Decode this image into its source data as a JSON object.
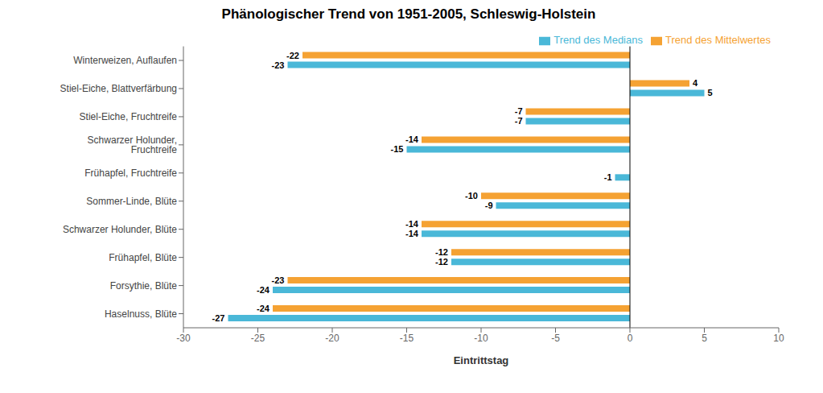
{
  "chart_data": {
    "type": "bar",
    "orientation": "horizontal",
    "title": "Phänologischer Trend von 1951-2005, Schleswig-Holstein",
    "xlabel": "Eintrittstag",
    "categories": [
      "Winterweizen, Auflaufen",
      "Stiel-Eiche, Blattverfärbung",
      "Stiel-Eiche, Fruchtreife",
      "Schwarzer Holunder, Fruchtreife",
      "Frühapfel, Fruchtreife",
      "Sommer-Linde, Blüte",
      "Schwarzer Holunder, Blüte",
      "Frühapfel, Blüte",
      "Forsythie, Blüte",
      "Haselnuss, Blüte"
    ],
    "series": [
      {
        "name": "Trend des Mittelwertes",
        "color": "#f5a233",
        "values": [
          -22,
          4,
          -7,
          -14,
          0,
          -10,
          -14,
          -12,
          -23,
          -24
        ]
      },
      {
        "name": "Trend des Medians",
        "color": "#4ab8d8",
        "values": [
          -23,
          5,
          -7,
          -15,
          -1,
          -9,
          -14,
          -12,
          -24,
          -27
        ]
      }
    ],
    "xlim": [
      -30,
      10
    ],
    "xticks": [
      -30,
      -25,
      -20,
      -15,
      -10,
      -5,
      0,
      5,
      10
    ],
    "data_labels": true,
    "grid": false,
    "legend": "upper right"
  }
}
